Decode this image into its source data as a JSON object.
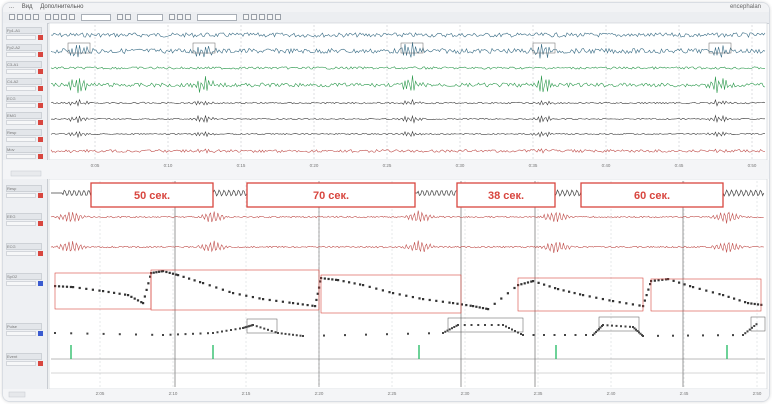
{
  "menubar": {
    "items": [
      "...",
      "Вид",
      "Дополнительно"
    ],
    "brand": "encephalan"
  },
  "toolbar": {
    "field_value": "..."
  },
  "top_panel": {
    "channel_labels": [
      "Fp1-A1",
      "Fp2-A2",
      "C3-A1",
      "C4-A2",
      "ECG",
      "EMG",
      "Resp",
      "Mov"
    ],
    "time_ticks": [
      "0:05",
      "0:10",
      "0:15",
      "0:20",
      "0:25",
      "0:30",
      "0:35",
      "0:40",
      "0:45",
      "0:50"
    ]
  },
  "bottom_panel": {
    "channel_labels": [
      "Resp",
      "EEG",
      "ECG",
      "SpO2",
      "Pulse",
      "Event"
    ],
    "time_ticks": [
      "2:05",
      "2:10",
      "2:15",
      "2:20",
      "2:25",
      "2:30",
      "2:35",
      "2:40",
      "2:45",
      "2:50"
    ],
    "annotations": [
      {
        "id": "box-50",
        "label": "50 сек."
      },
      {
        "id": "box-70",
        "label": "70 сек."
      },
      {
        "id": "box-38",
        "label": "38 сек."
      },
      {
        "id": "box-60",
        "label": "60 сек."
      }
    ]
  },
  "colors": {
    "accent_red": "#d8463f",
    "wave_blue": "#3a6d86",
    "wave_green": "#2e9a4e",
    "wave_dark": "#3b3b3b",
    "wave_red": "#c0504d",
    "marker_green": "#2fbf6b"
  }
}
